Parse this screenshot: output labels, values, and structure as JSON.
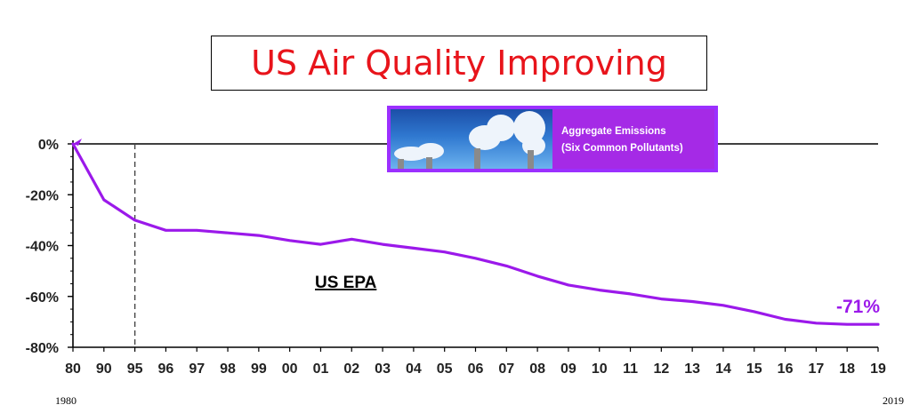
{
  "chart_data": {
    "type": "line",
    "title": "US Air Quality Improving",
    "series": [
      {
        "name": "Aggregate Emissions (Six Common Pollutants)",
        "color": "#9b19ea",
        "x": [
          "80",
          "90",
          "95",
          "96",
          "97",
          "98",
          "99",
          "00",
          "01",
          "02",
          "03",
          "04",
          "05",
          "06",
          "07",
          "08",
          "09",
          "10",
          "11",
          "12",
          "13",
          "14",
          "15",
          "16",
          "17",
          "18",
          "19"
        ],
        "values": [
          0,
          -22,
          -30,
          -34,
          -34,
          -35,
          -36,
          -38,
          -39.5,
          -37.5,
          -39.5,
          -41,
          -42.5,
          -45,
          -48,
          -52,
          -55.5,
          -57.5,
          -59,
          -61,
          -62,
          -63.5,
          -66,
          -69,
          -70.5,
          -71,
          -71
        ]
      }
    ],
    "categories": [
      "80",
      "90",
      "95",
      "96",
      "97",
      "98",
      "99",
      "00",
      "01",
      "02",
      "03",
      "04",
      "05",
      "06",
      "07",
      "08",
      "09",
      "10",
      "11",
      "12",
      "13",
      "14",
      "15",
      "16",
      "17",
      "18",
      "19"
    ],
    "ylim": [
      -80,
      0
    ],
    "yticks": [
      "0%",
      "-20%",
      "-40%",
      "-60%",
      "-80%"
    ],
    "ytick_values": [
      0,
      -20,
      -40,
      -60,
      -80
    ],
    "xlabel_start": "1980",
    "xlabel_end": "2019",
    "marker_category": "95",
    "source_label": "US EPA",
    "end_label": "-71%",
    "legend": {
      "line1": "Aggregate Emissions",
      "line2": "(Six Common Pollutants)"
    }
  }
}
